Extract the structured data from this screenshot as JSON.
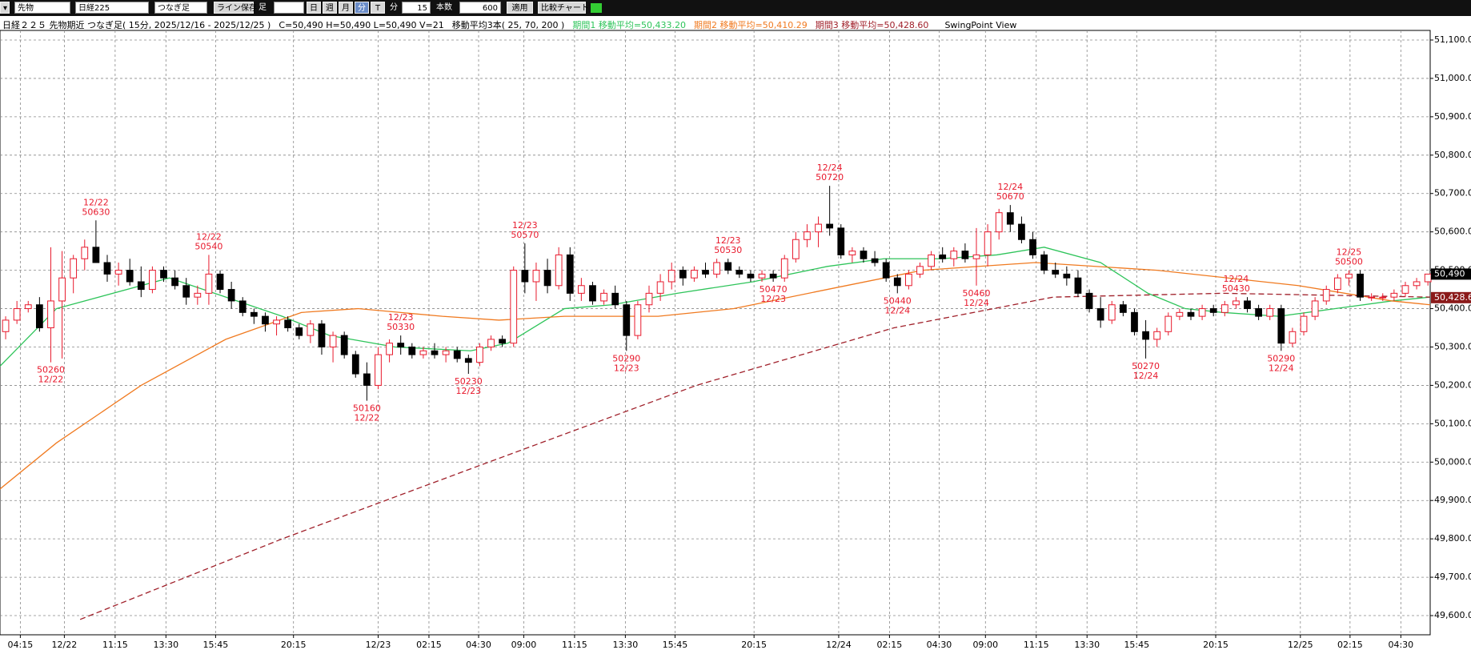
{
  "toolbar": {
    "market": "先物",
    "symbol": "日経225",
    "mode": "つなぎ足",
    "save": "ライン保存",
    "ashi": "足",
    "day": "日",
    "week": "週",
    "month": "月",
    "minute": "分",
    "tick": "T",
    "unit": "分",
    "interval": "15",
    "count_label": "本数",
    "count": "600",
    "apply": "適用",
    "compare": "比較チャート"
  },
  "chart_data": {
    "type": "candlestick",
    "title": "日経２２５ 先物期近 つなぎ足( 15分, 2025/12/16 - 2025/12/25 )",
    "ohlcv": "C=50,490 H=50,490 L=50,490 V=21",
    "ma_label": "移動平均3本( 25, 70, 200 )",
    "view": "SwingPoint View",
    "up_color": "#e8192c",
    "down_color": "#000000",
    "swing_color": "#e8192c",
    "grid": true,
    "xlim": [
      -0.5,
      126.2
    ],
    "ylim": [
      49550,
      51125
    ],
    "xticks": [
      {
        "value": 1.3,
        "label": "04:15"
      },
      {
        "value": 5.2,
        "label": "12/22"
      },
      {
        "value": 9.7,
        "label": "11:15"
      },
      {
        "value": 14.2,
        "label": "13:30"
      },
      {
        "value": 18.6,
        "label": "15:45"
      },
      {
        "value": 25.5,
        "label": "20:15"
      },
      {
        "value": 33,
        "label": "12/23"
      },
      {
        "value": 37.5,
        "label": "02:15"
      },
      {
        "value": 41.9,
        "label": "04:30"
      },
      {
        "value": 45.9,
        "label": "09:00"
      },
      {
        "value": 50.4,
        "label": "11:15"
      },
      {
        "value": 54.9,
        "label": "13:30"
      },
      {
        "value": 59.3,
        "label": "15:45"
      },
      {
        "value": 66.3,
        "label": "20:15"
      },
      {
        "value": 73.8,
        "label": "12/24"
      },
      {
        "value": 78.3,
        "label": "02:15"
      },
      {
        "value": 82.7,
        "label": "04:30"
      },
      {
        "value": 86.8,
        "label": "09:00"
      },
      {
        "value": 91.3,
        "label": "11:15"
      },
      {
        "value": 95.8,
        "label": "13:30"
      },
      {
        "value": 100.2,
        "label": "15:45"
      },
      {
        "value": 107.2,
        "label": "20:15"
      },
      {
        "value": 114.7,
        "label": "12/25"
      },
      {
        "value": 119.1,
        "label": "02:15"
      },
      {
        "value": 123.6,
        "label": "04:30"
      }
    ],
    "yticks": [
      {
        "value": 49600,
        "label": "49,600.0"
      },
      {
        "value": 49700,
        "label": "49,700.0"
      },
      {
        "value": 49800,
        "label": "49,800.0"
      },
      {
        "value": 49900,
        "label": "49,900.0"
      },
      {
        "value": 50000,
        "label": "50,000.0"
      },
      {
        "value": 50100,
        "label": "50,100.0"
      },
      {
        "value": 50200,
        "label": "50,200.0"
      },
      {
        "value": 50300,
        "label": "50,300.0"
      },
      {
        "value": 50400,
        "label": "50,400.0"
      },
      {
        "value": 50500,
        "label": "50,500.0"
      },
      {
        "value": 50600,
        "label": "50,600.0"
      },
      {
        "value": 50700,
        "label": "50,700.0"
      },
      {
        "value": 50800,
        "label": "50,800.0"
      },
      {
        "value": 50900,
        "label": "50,900.0"
      },
      {
        "value": 51000,
        "label": "51,000.0"
      },
      {
        "value": 51100,
        "label": "51,100.0"
      }
    ],
    "candles": [
      [
        50340,
        50380,
        50320,
        50370
      ],
      [
        50370,
        50420,
        50360,
        50400
      ],
      [
        50400,
        50420,
        50390,
        50410
      ],
      [
        50410,
        50430,
        50340,
        50350
      ],
      [
        50350,
        50560,
        50260,
        50420
      ],
      [
        50420,
        50550,
        50270,
        50480
      ],
      [
        50480,
        50540,
        50440,
        50530
      ],
      [
        50530,
        50580,
        50500,
        50560
      ],
      [
        50560,
        50630,
        50520,
        50520
      ],
      [
        50520,
        50540,
        50470,
        50490
      ],
      [
        50490,
        50520,
        50460,
        50500
      ],
      [
        50500,
        50530,
        50460,
        50470
      ],
      [
        50470,
        50510,
        50430,
        50450
      ],
      [
        50450,
        50510,
        50440,
        50500
      ],
      [
        50500,
        50510,
        50470,
        50480
      ],
      [
        50480,
        50500,
        50450,
        50460
      ],
      [
        50460,
        50480,
        50410,
        50430
      ],
      [
        50430,
        50460,
        50410,
        50440
      ],
      [
        50440,
        50540,
        50410,
        50490
      ],
      [
        50490,
        50500,
        50440,
        50450
      ],
      [
        50450,
        50470,
        50400,
        50420
      ],
      [
        50420,
        50430,
        50380,
        50390
      ],
      [
        50390,
        50400,
        50360,
        50380
      ],
      [
        50380,
        50390,
        50340,
        50360
      ],
      [
        50360,
        50380,
        50330,
        50370
      ],
      [
        50370,
        50380,
        50340,
        50350
      ],
      [
        50350,
        50360,
        50320,
        50330
      ],
      [
        50330,
        50370,
        50310,
        50360
      ],
      [
        50360,
        50370,
        50280,
        50300
      ],
      [
        50300,
        50340,
        50260,
        50330
      ],
      [
        50330,
        50340,
        50270,
        50280
      ],
      [
        50280,
        50290,
        50220,
        50230
      ],
      [
        50230,
        50260,
        50160,
        50200
      ],
      [
        50200,
        50300,
        50190,
        50280
      ],
      [
        50280,
        50320,
        50260,
        50310
      ],
      [
        50310,
        50330,
        50280,
        50300
      ],
      [
        50300,
        50310,
        50270,
        50280
      ],
      [
        50280,
        50300,
        50270,
        50290
      ],
      [
        50290,
        50310,
        50270,
        50280
      ],
      [
        50280,
        50300,
        50260,
        50290
      ],
      [
        50290,
        50300,
        50260,
        50270
      ],
      [
        50270,
        50280,
        50230,
        50260
      ],
      [
        50260,
        50310,
        50250,
        50300
      ],
      [
        50300,
        50330,
        50290,
        50320
      ],
      [
        50320,
        50330,
        50300,
        50310
      ],
      [
        50310,
        50510,
        50300,
        50500
      ],
      [
        50500,
        50570,
        50440,
        50470
      ],
      [
        50470,
        50520,
        50420,
        50500
      ],
      [
        50500,
        50530,
        50440,
        50460
      ],
      [
        50460,
        50560,
        50450,
        50540
      ],
      [
        50540,
        50560,
        50420,
        50440
      ],
      [
        50440,
        50480,
        50420,
        50460
      ],
      [
        50460,
        50470,
        50410,
        50420
      ],
      [
        50420,
        50450,
        50410,
        50440
      ],
      [
        50440,
        50460,
        50400,
        50410
      ],
      [
        50410,
        50420,
        50290,
        50330
      ],
      [
        50330,
        50420,
        50320,
        50410
      ],
      [
        50410,
        50460,
        50390,
        50440
      ],
      [
        50440,
        50490,
        50420,
        50470
      ],
      [
        50470,
        50520,
        50450,
        50500
      ],
      [
        50500,
        50510,
        50460,
        50480
      ],
      [
        50480,
        50510,
        50470,
        50500
      ],
      [
        50500,
        50520,
        50480,
        50490
      ],
      [
        50490,
        50530,
        50480,
        50520
      ],
      [
        50520,
        50530,
        50490,
        50500
      ],
      [
        50500,
        50510,
        50480,
        50490
      ],
      [
        50490,
        50500,
        50470,
        50480
      ],
      [
        50480,
        50500,
        50470,
        50490
      ],
      [
        50490,
        50500,
        50470,
        50480
      ],
      [
        50480,
        50540,
        50470,
        50530
      ],
      [
        50530,
        50600,
        50520,
        50580
      ],
      [
        50580,
        50620,
        50560,
        50600
      ],
      [
        50600,
        50640,
        50560,
        50620
      ],
      [
        50620,
        50720,
        50590,
        50610
      ],
      [
        50610,
        50620,
        50530,
        50540
      ],
      [
        50540,
        50560,
        50520,
        50550
      ],
      [
        50550,
        50560,
        50520,
        50530
      ],
      [
        50530,
        50550,
        50510,
        50520
      ],
      [
        50520,
        50530,
        50470,
        50480
      ],
      [
        50480,
        50490,
        50440,
        50460
      ],
      [
        50460,
        50500,
        50450,
        50490
      ],
      [
        50490,
        50520,
        50480,
        50510
      ],
      [
        50510,
        50550,
        50500,
        50540
      ],
      [
        50540,
        50560,
        50520,
        50530
      ],
      [
        50530,
        50560,
        50510,
        50550
      ],
      [
        50550,
        50570,
        50520,
        50530
      ],
      [
        50530,
        50610,
        50460,
        50540
      ],
      [
        50540,
        50620,
        50510,
        50600
      ],
      [
        50600,
        50660,
        50580,
        50650
      ],
      [
        50650,
        50670,
        50600,
        50620
      ],
      [
        50620,
        50640,
        50570,
        50580
      ],
      [
        50580,
        50600,
        50530,
        50540
      ],
      [
        50540,
        50550,
        50490,
        50500
      ],
      [
        50500,
        50520,
        50480,
        50490
      ],
      [
        50490,
        50510,
        50460,
        50480
      ],
      [
        50480,
        50500,
        50430,
        50440
      ],
      [
        50440,
        50450,
        50390,
        50400
      ],
      [
        50400,
        50430,
        50350,
        50370
      ],
      [
        50370,
        50420,
        50360,
        50410
      ],
      [
        50410,
        50420,
        50380,
        50390
      ],
      [
        50390,
        50400,
        50330,
        50340
      ],
      [
        50340,
        50370,
        50270,
        50320
      ],
      [
        50320,
        50350,
        50300,
        50340
      ],
      [
        50340,
        50390,
        50330,
        50380
      ],
      [
        50380,
        50400,
        50370,
        50390
      ],
      [
        50390,
        50400,
        50370,
        50380
      ],
      [
        50380,
        50410,
        50370,
        50400
      ],
      [
        50400,
        50410,
        50380,
        50390
      ],
      [
        50390,
        50420,
        50380,
        50410
      ],
      [
        50410,
        50430,
        50400,
        50420
      ],
      [
        50420,
        50430,
        50390,
        50400
      ],
      [
        50400,
        50410,
        50370,
        50380
      ],
      [
        50380,
        50410,
        50370,
        50400
      ],
      [
        50400,
        50410,
        50290,
        50310
      ],
      [
        50310,
        50350,
        50300,
        50340
      ],
      [
        50340,
        50390,
        50330,
        50380
      ],
      [
        50380,
        50430,
        50370,
        50420
      ],
      [
        50420,
        50460,
        50410,
        50450
      ],
      [
        50450,
        50490,
        50440,
        50480
      ],
      [
        50480,
        50500,
        50460,
        50490
      ],
      [
        50490,
        50500,
        50420,
        50430
      ],
      [
        50430,
        50440,
        50420,
        50430
      ],
      [
        50430,
        50440,
        50420,
        50430
      ],
      [
        50430,
        50450,
        50420,
        50440
      ],
      [
        50440,
        50470,
        50430,
        50460
      ],
      [
        50460,
        50480,
        50450,
        50470
      ],
      [
        50470,
        50490,
        50460,
        50490
      ]
    ],
    "series": [
      {
        "name": "期間1 移動平均=50,433.20",
        "color": "#2ec45a",
        "dashed": false,
        "x": [
          -0.5,
          4.5,
          14.5,
          24.5,
          28.7,
          34.5,
          41.2,
          44.5,
          49.5,
          53.7,
          59.5,
          66.2,
          72.8,
          77.8,
          82.8,
          87.8,
          92,
          97,
          101.2,
          104.5,
          107.8,
          112.8,
          117.8,
          122.8,
          126.2
        ],
        "values": [
          50250,
          50400,
          50480,
          50380,
          50330,
          50300,
          50290,
          50310,
          50400,
          50410,
          50440,
          50470,
          50510,
          50530,
          50530,
          50540,
          50560,
          50520,
          50440,
          50400,
          50390,
          50380,
          50400,
          50420,
          50430
        ]
      },
      {
        "name": "期間2 移動平均=50,410.29",
        "color": "#f07a20",
        "dashed": false,
        "x": [
          -0.5,
          4.5,
          12,
          19.5,
          26.2,
          31.2,
          38.7,
          43.7,
          49.5,
          57.8,
          64.5,
          72.8,
          81.2,
          91.2,
          102,
          114.5,
          122.8,
          126.2
        ],
        "values": [
          49930,
          50050,
          50200,
          50320,
          50390,
          50400,
          50380,
          50370,
          50380,
          50380,
          50400,
          50450,
          50500,
          50520,
          50500,
          50460,
          50420,
          50410
        ]
      },
      {
        "name": "期間3 移動平均=50,428.60",
        "color": "#a0202a",
        "dashed": true,
        "x": [
          6.6,
          24.5,
          42.8,
          61.2,
          78.7,
          92.8,
          107.8,
          126.2
        ],
        "values": [
          49590,
          49800,
          50000,
          50200,
          50350,
          50430,
          50440,
          50430
        ]
      }
    ],
    "swing_highs": [
      {
        "date": "12/22",
        "price": 50630,
        "x": 8
      },
      {
        "date": "12/22",
        "price": 50540,
        "x": 18
      },
      {
        "date": "12/23",
        "price": 50330,
        "x": 35
      },
      {
        "date": "12/23",
        "price": 50570,
        "x": 46
      },
      {
        "date": "12/23",
        "price": 50530,
        "x": 64
      },
      {
        "date": "12/24",
        "price": 50720,
        "x": 73
      },
      {
        "date": "12/24",
        "price": 50670,
        "x": 89
      },
      {
        "date": "12/24",
        "price": 50430,
        "x": 109
      },
      {
        "date": "12/25",
        "price": 50500,
        "x": 119
      }
    ],
    "swing_lows": [
      {
        "date": "12/22",
        "price": 50260,
        "x": 4
      },
      {
        "date": "12/22",
        "price": 50160,
        "x": 32
      },
      {
        "date": "12/23",
        "price": 50230,
        "x": 41
      },
      {
        "date": "12/23",
        "price": 50290,
        "x": 55
      },
      {
        "date": "12/23",
        "price": 50470,
        "x": 68
      },
      {
        "date": "12/24",
        "price": 50440,
        "x": 79
      },
      {
        "date": "12/24",
        "price": 50460,
        "x": 86
      },
      {
        "date": "12/24",
        "price": 50270,
        "x": 101
      },
      {
        "date": "12/24",
        "price": 50290,
        "x": 113
      }
    ],
    "price_tags": [
      {
        "value": 50490,
        "label": "50,490",
        "color": "#000000"
      },
      {
        "value": 50428.6,
        "label": "50,428.6",
        "color": "#8b1a1a"
      }
    ]
  }
}
